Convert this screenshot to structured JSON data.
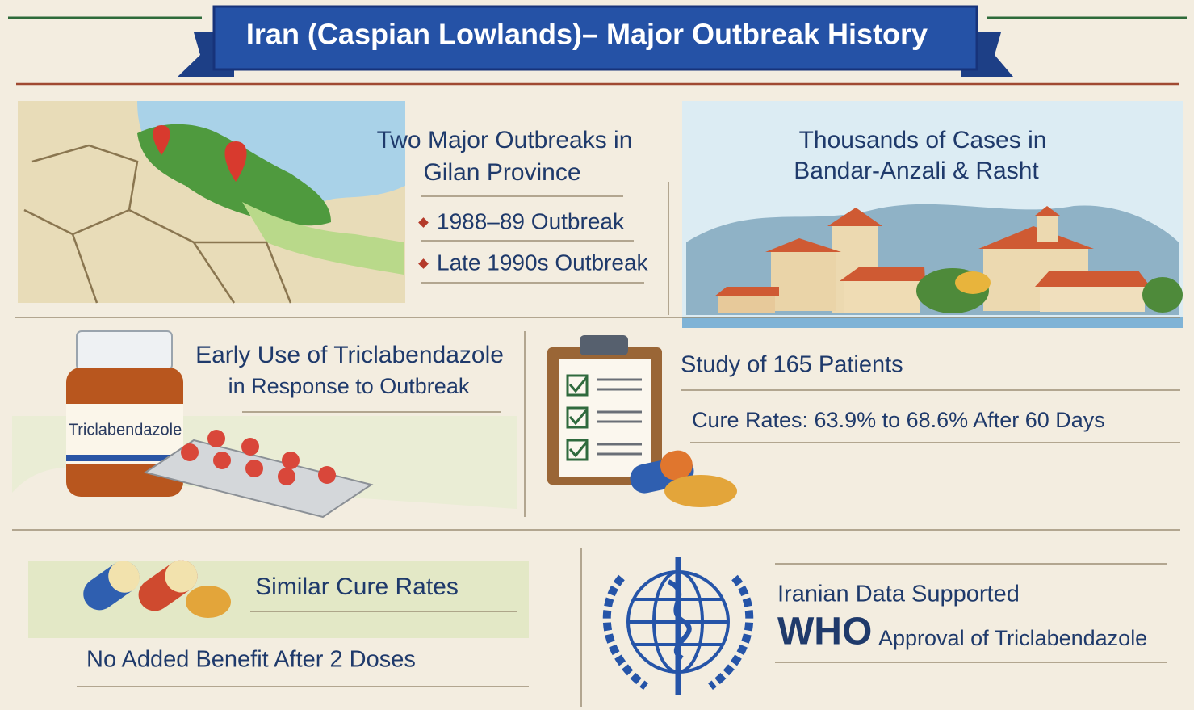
{
  "header": {
    "title": "Iran (Caspian Lowlands)– Major Outbreak History"
  },
  "outbreaks": {
    "heading": [
      "Two Major Outbreaks in",
      "Gilan Province"
    ],
    "items": [
      "1988–89 Outbreak",
      "Late 1990s Outbreak"
    ]
  },
  "cases": {
    "heading": [
      "Thousands of Cases in",
      "Bandar-Anzali & Rasht"
    ]
  },
  "treatment": {
    "heading": [
      "Early Use of Triclabendazole",
      "in Response to Outbreak"
    ],
    "bottle_label": "Triclabendazole"
  },
  "study": {
    "heading": "Study of 165 Patients",
    "result": "Cure Rates: 63.9% to 68.6% After 60 Days"
  },
  "doses": {
    "heading": "Similar Cure Rates",
    "note": "No Added Benefit After 2 Doses"
  },
  "who": {
    "line1": "Iranian Data Supported",
    "emphasis": "WHO",
    "line2": "Approval of Triclabendazole"
  }
}
